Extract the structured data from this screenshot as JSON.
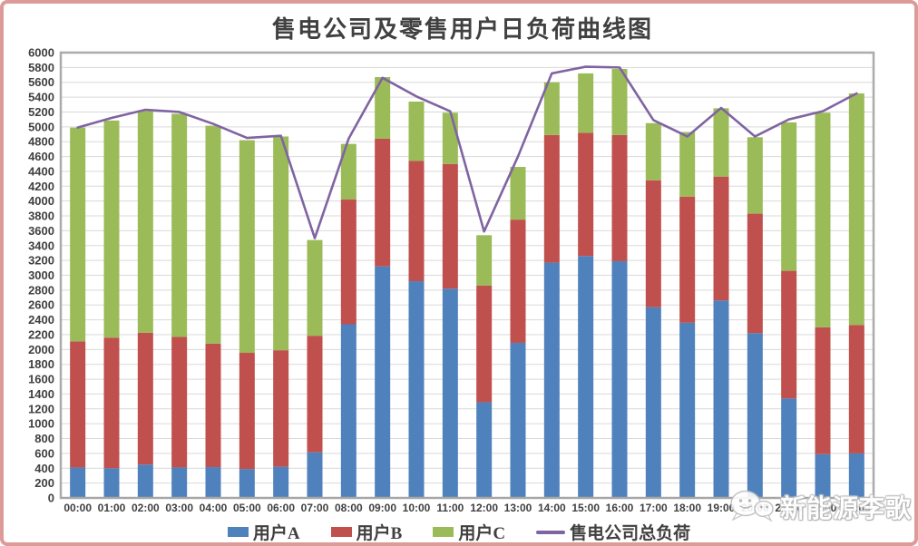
{
  "page": {
    "title": "售电公司及零售用户日负荷曲线图"
  },
  "watermark": {
    "text": "新能源李歌",
    "icon": "wechat-chat-bubbles"
  },
  "colors": {
    "userA": "#4F81BD",
    "userB": "#C0504D",
    "userC": "#9BBB59",
    "total_line": "#8064A2",
    "frame_border": "#DC9A98",
    "plot_border": "#ABABAB",
    "axis_line": "#A6A6A6",
    "gridline": "#D9D9D9",
    "text": "#404040"
  },
  "chart_data": {
    "type": "bar",
    "subtype": "stacked-bars-with-total-line",
    "title": "售电公司及零售用户日负荷曲线图",
    "xlabel": "",
    "ylabel": "",
    "ylim": [
      0,
      6000
    ],
    "ytick_step": 200,
    "grid": true,
    "stacked": true,
    "legend_position": "bottom",
    "categories": [
      "00:00",
      "01:00",
      "02:00",
      "03:00",
      "04:00",
      "05:00",
      "06:00",
      "07:00",
      "08:00",
      "09:00",
      "10:00",
      "11:00",
      "12:00",
      "13:00",
      "14:00",
      "15:00",
      "16:00",
      "17:00",
      "18:00",
      "19:00",
      "20:00",
      "21:00",
      "22:00",
      "23:00"
    ],
    "series": [
      {
        "name": "用户A",
        "type": "bar",
        "color": "#4F81BD",
        "values": [
          410,
          400,
          450,
          410,
          415,
          390,
          420,
          615,
          2340,
          3120,
          2920,
          2820,
          1290,
          2090,
          3170,
          3260,
          3190,
          2570,
          2360,
          2660,
          2220,
          1340,
          590,
          600
        ]
      },
      {
        "name": "用户B",
        "type": "bar",
        "color": "#C0504D",
        "values": [
          1700,
          1760,
          1775,
          1760,
          1665,
          1565,
          1570,
          1570,
          1680,
          1720,
          1620,
          1680,
          1570,
          1660,
          1720,
          1660,
          1700,
          1710,
          1700,
          1670,
          1610,
          1720,
          1710,
          1730
        ]
      },
      {
        "name": "用户C",
        "type": "bar",
        "color": "#9BBB59",
        "values": [
          2880,
          2925,
          2990,
          3005,
          2935,
          2865,
          2880,
          1290,
          750,
          830,
          800,
          690,
          680,
          710,
          710,
          800,
          890,
          770,
          870,
          920,
          1030,
          2000,
          2890,
          3120
        ]
      },
      {
        "name": "售电公司总负荷",
        "type": "line",
        "color": "#8064A2",
        "values": [
          4990,
          5120,
          5230,
          5200,
          5040,
          4850,
          4880,
          3500,
          4840,
          5660,
          5410,
          5210,
          3590,
          4600,
          5720,
          5810,
          5800,
          5090,
          4870,
          5255,
          4870,
          5100,
          5210,
          5450
        ]
      }
    ]
  }
}
